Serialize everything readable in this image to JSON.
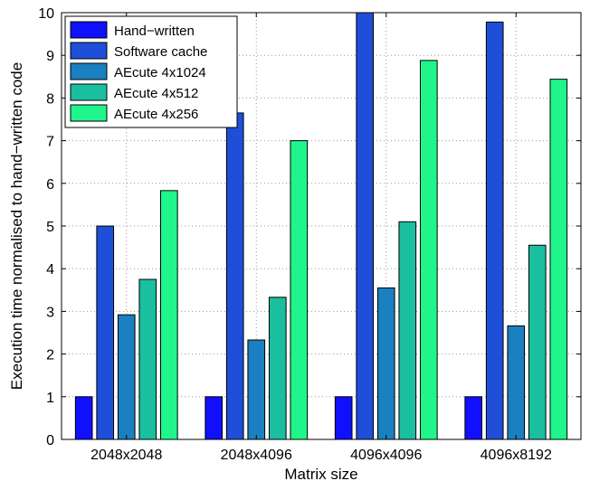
{
  "chart_data": {
    "type": "bar",
    "categories": [
      "2048x2048",
      "2048x4096",
      "4096x4096",
      "4096x8192"
    ],
    "series": [
      {
        "name": "Hand−written",
        "color": "#1010ff",
        "values": [
          1,
          1,
          1,
          1
        ]
      },
      {
        "name": "Software cache",
        "color": "#1f4fd8",
        "values": [
          5.0,
          7.65,
          10.0,
          9.78
        ]
      },
      {
        "name": "AEcute 4x1024",
        "color": "#1a80bf",
        "values": [
          2.92,
          2.33,
          3.55,
          2.66
        ]
      },
      {
        "name": "AEcute 4x512",
        "color": "#1abf9f",
        "values": [
          3.75,
          3.33,
          5.1,
          4.55
        ]
      },
      {
        "name": "AEcute 4x256",
        "color": "#1ff58a",
        "values": [
          5.83,
          7.0,
          8.88,
          8.44
        ]
      }
    ],
    "xlabel": "Matrix size",
    "ylabel": "Execution time normalised to hand−written code",
    "ylim": [
      0,
      10
    ],
    "yticks": [
      0,
      1,
      2,
      3,
      4,
      5,
      6,
      7,
      8,
      9,
      10
    ],
    "grid": true,
    "legend_position": "top-left"
  }
}
